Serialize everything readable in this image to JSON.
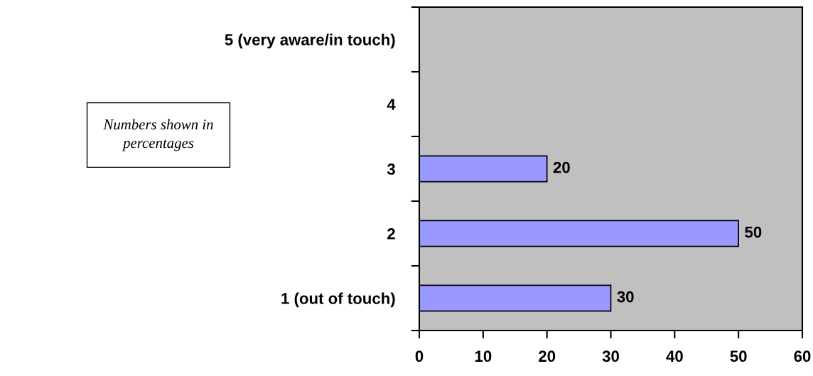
{
  "chart_data": {
    "type": "bar",
    "orientation": "horizontal",
    "categories": [
      "5 (very aware/in touch)",
      "4",
      "3",
      "2",
      "1 (out of touch)"
    ],
    "values": [
      null,
      null,
      20,
      50,
      30
    ],
    "color": "#9999ff",
    "data_labels": true,
    "xlim": [
      0,
      60
    ],
    "xticks": [
      0,
      10,
      20,
      30,
      40,
      50,
      60
    ],
    "grid": false,
    "legend": false,
    "annotations": [
      "Numbers shown in\npercentages"
    ]
  }
}
